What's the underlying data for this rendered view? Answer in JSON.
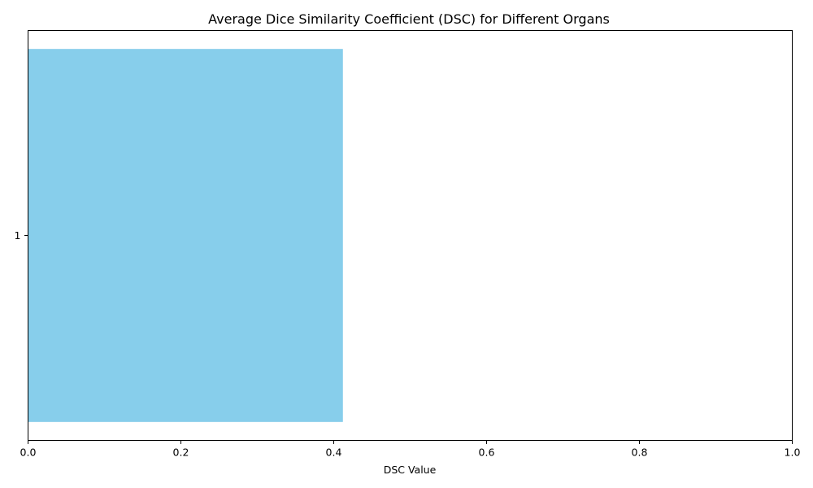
{
  "chart_data": {
    "type": "bar",
    "orientation": "horizontal",
    "title": "Average Dice Similarity Coefficient (DSC) for Different Organs",
    "xlabel": "DSC Value",
    "ylabel": "",
    "categories": [
      "1"
    ],
    "values": [
      0.412
    ],
    "xlim": [
      0,
      1.0
    ],
    "xticks": [
      "0.0",
      "0.2",
      "0.4",
      "0.6",
      "0.8",
      "1.0"
    ],
    "grid": false,
    "bar_color": "#87CEEB"
  }
}
